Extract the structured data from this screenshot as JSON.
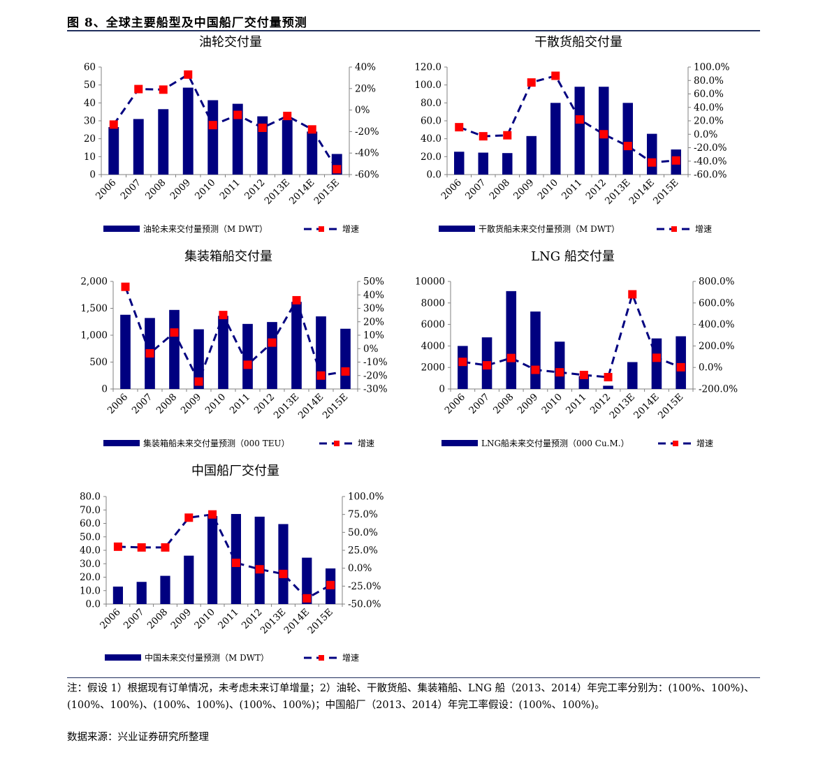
{
  "header": {
    "figure_title": "图 8、全球主要船型及中国船厂交付量预测"
  },
  "chart_data": [
    {
      "id": "oil",
      "type": "bar",
      "title": "油轮交付量",
      "categories": [
        "2006",
        "2007",
        "2008",
        "2009",
        "2010",
        "2011",
        "2012",
        "2013E",
        "2014E",
        "2015E"
      ],
      "series": [
        {
          "name": "油轮未来交付量预测（M DWT）",
          "type": "bar",
          "axis": "left",
          "color": "#000080",
          "values": [
            26.5,
            31,
            36.5,
            48.5,
            41.5,
            39.5,
            32.5,
            30.5,
            24,
            11.5
          ]
        },
        {
          "name": "增速",
          "type": "line",
          "axis": "right",
          "color": "#000080",
          "marker_color": "#FF0000",
          "values": [
            -13.5,
            19.5,
            19,
            33,
            -14,
            -4.5,
            -16.5,
            -5.5,
            -18,
            -55
          ]
        }
      ],
      "y_left": {
        "min": 0,
        "max": 60,
        "ticks": [
          "60",
          "50",
          "40",
          "30",
          "20",
          "10",
          "0"
        ]
      },
      "y_right": {
        "min": -60,
        "max": 40,
        "ticks": [
          "40%",
          "20%",
          "0%",
          "-20%",
          "-40%",
          "-60%"
        ]
      }
    },
    {
      "id": "bulk",
      "type": "bar",
      "title": "干散货船交付量",
      "categories": [
        "2006",
        "2007",
        "2008",
        "2009",
        "2010",
        "2011",
        "2012",
        "2013E",
        "2014E",
        "2015E"
      ],
      "series": [
        {
          "name": "干散货船未来交付量预测（M DWT）",
          "type": "bar",
          "axis": "left",
          "color": "#000080",
          "values": [
            25.5,
            24.5,
            24,
            43,
            80,
            98,
            98,
            80,
            45.5,
            28
          ]
        },
        {
          "name": "增速",
          "type": "line",
          "axis": "right",
          "color": "#000080",
          "marker_color": "#FF0000",
          "values": [
            10.5,
            -3,
            -1.5,
            77,
            87,
            22,
            0,
            -17.5,
            -42,
            -39
          ]
        }
      ],
      "y_left": {
        "min": 0,
        "max": 120,
        "ticks": [
          "120.0",
          "100.0",
          "80.0",
          "60.0",
          "40.0",
          "20.0",
          "0.0"
        ]
      },
      "y_right": {
        "min": -60,
        "max": 100,
        "ticks": [
          "100.0%",
          "80.0%",
          "60.0%",
          "40.0%",
          "20.0%",
          "0.0%",
          "-20.0%",
          "-40.0%",
          "-60.0%"
        ]
      }
    },
    {
      "id": "container",
      "type": "bar",
      "title": "集装箱船交付量",
      "categories": [
        "2006",
        "2007",
        "2008",
        "2009",
        "2010",
        "2011",
        "2012",
        "2013E",
        "2014E",
        "2015E"
      ],
      "series": [
        {
          "name": "集装箱船未来交付量预测（000 TEU）",
          "type": "bar",
          "axis": "left",
          "color": "#000080",
          "values": [
            1380,
            1320,
            1470,
            1110,
            1360,
            1210,
            1245,
            1620,
            1350,
            1120
          ]
        },
        {
          "name": "增速",
          "type": "line",
          "axis": "right",
          "color": "#000080",
          "marker_color": "#FF0000",
          "values": [
            46,
            -3.5,
            12,
            -24.5,
            25,
            -12,
            4.5,
            36,
            -20,
            -17
          ]
        }
      ],
      "y_left": {
        "min": 0,
        "max": 2000,
        "ticks": [
          "2,000",
          "1,500",
          "1,000",
          "500",
          "0"
        ]
      },
      "y_right": {
        "min": -30,
        "max": 50,
        "ticks": [
          "50%",
          "40%",
          "30%",
          "20%",
          "10%",
          "0%",
          "-10%",
          "-20%",
          "-30%"
        ]
      }
    },
    {
      "id": "lng",
      "type": "bar",
      "title": "LNG 船交付量",
      "categories": [
        "2006",
        "2007",
        "2008",
        "2009",
        "2010",
        "2011",
        "2012",
        "2013E",
        "2014E",
        "2015E"
      ],
      "series": [
        {
          "name": "LNG船未来交付量预测（000 Cu.M.）",
          "type": "bar",
          "axis": "left",
          "color": "#000080",
          "values": [
            4000,
            4800,
            9100,
            7200,
            4400,
            1200,
            300,
            2500,
            4700,
            4900
          ]
        },
        {
          "name": "增速",
          "type": "line",
          "axis": "right",
          "color": "#000080",
          "marker_color": "#FF0000",
          "values": [
            52,
            20,
            88,
            -22,
            -45,
            -70,
            -90,
            680,
            90,
            2
          ]
        }
      ],
      "y_left": {
        "min": 0,
        "max": 10000,
        "ticks": [
          "10000",
          "8000",
          "6000",
          "4000",
          "2000",
          "0"
        ]
      },
      "y_right": {
        "min": -200,
        "max": 800,
        "ticks": [
          "800.0%",
          "600.0%",
          "400.0%",
          "200.0%",
          "0.0%",
          "-200.0%"
        ]
      }
    },
    {
      "id": "china",
      "type": "bar",
      "title": "中国船厂交付量",
      "categories": [
        "2006",
        "2007",
        "2008",
        "2009",
        "2010",
        "2011",
        "2012",
        "2013E",
        "2014E",
        "2015E"
      ],
      "series": [
        {
          "name": "中国未来交付量预测（M DWT）",
          "type": "bar",
          "axis": "left",
          "color": "#000080",
          "values": [
            13,
            16.5,
            21,
            36,
            65.5,
            67,
            65,
            59.5,
            34.5,
            26.5
          ]
        },
        {
          "name": "增速",
          "type": "line",
          "axis": "right",
          "color": "#000080",
          "marker_color": "#FF0000",
          "values": [
            30,
            29,
            29,
            70.5,
            75,
            7.5,
            -1.5,
            -8,
            -42,
            -23.5
          ]
        }
      ],
      "y_left": {
        "min": 0,
        "max": 80,
        "ticks": [
          "80.0",
          "70.0",
          "60.0",
          "50.0",
          "40.0",
          "30.0",
          "20.0",
          "10.0",
          "0.0"
        ]
      },
      "y_right": {
        "min": -50,
        "max": 100,
        "ticks": [
          "100.0%",
          "75.0%",
          "50.0%",
          "25.0%",
          "0.0%",
          "-25.0%",
          "-50.0%"
        ]
      }
    }
  ],
  "footer": {
    "note": "注：假设 1）根据现有订单情况，未考虑未来订单增量；2）油轮、干散货船、集装箱船、LNG 船（2013、2014）年完工率分别为：(100%、100%)、(100%、100%)、(100%、100%)、(100%、100%)；中国船厂（2013、2014）年完工率假设：(100%、100%)。",
    "source": "数据来源：兴业证券研究所整理"
  }
}
